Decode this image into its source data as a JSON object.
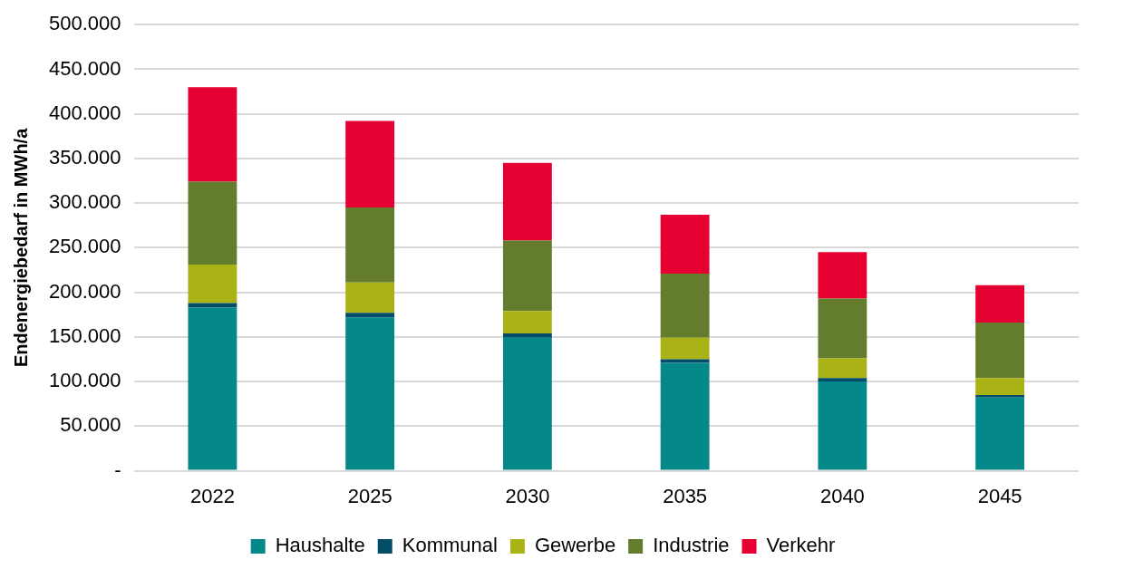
{
  "chart_data": {
    "type": "bar",
    "stacked": true,
    "ylabel": "Endenergiebedarf in MWh/a",
    "categories": [
      "2022",
      "2025",
      "2030",
      "2035",
      "2040",
      "2045"
    ],
    "series": [
      {
        "name": "Haushalte",
        "color": "#05888a",
        "values": [
          183000,
          172000,
          149000,
          121000,
          100000,
          82000
        ]
      },
      {
        "name": "Kommunal",
        "color": "#034d69",
        "values": [
          5000,
          5000,
          5000,
          4000,
          4000,
          3000
        ]
      },
      {
        "name": "Gewerbe",
        "color": "#a9b316",
        "values": [
          43000,
          34000,
          25000,
          24000,
          22000,
          19000
        ]
      },
      {
        "name": "Industrie",
        "color": "#647c2d",
        "values": [
          93000,
          84000,
          79000,
          72000,
          67000,
          62000
        ]
      },
      {
        "name": "Verkehr",
        "color": "#e60032",
        "values": [
          106000,
          97000,
          87000,
          66000,
          52000,
          42000
        ]
      }
    ],
    "ylim": [
      0,
      500000
    ],
    "yticks": [
      {
        "value": 0,
        "label": "-"
      },
      {
        "value": 50000,
        "label": "50.000"
      },
      {
        "value": 100000,
        "label": "100.000"
      },
      {
        "value": 150000,
        "label": "150.000"
      },
      {
        "value": 200000,
        "label": "200.000"
      },
      {
        "value": 250000,
        "label": "250.000"
      },
      {
        "value": 300000,
        "label": "300.000"
      },
      {
        "value": 350000,
        "label": "350.000"
      },
      {
        "value": 400000,
        "label": "400.000"
      },
      {
        "value": 450000,
        "label": "450.000"
      },
      {
        "value": 500000,
        "label": "500.000"
      }
    ],
    "grid": "y",
    "legend": "bottom"
  }
}
